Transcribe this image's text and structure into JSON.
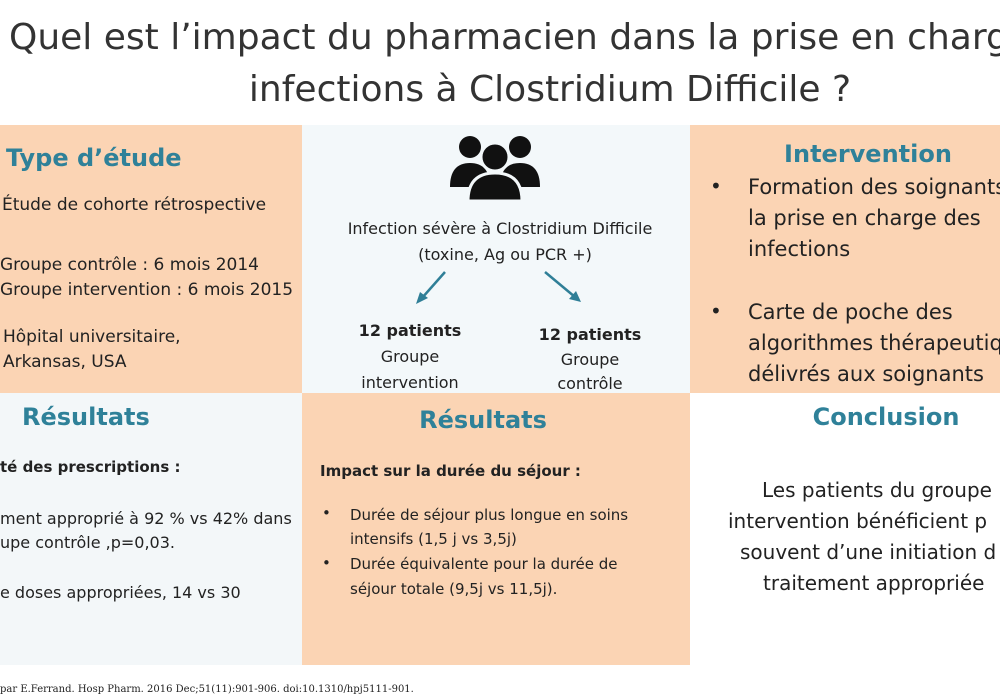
{
  "title": {
    "line1": "Quel est l’impact du pharmacien dans la prise en charge",
    "line2": "infections à Clostridium Difficile ?"
  },
  "study_type": {
    "heading": "Type d’étude",
    "items": [
      "Étude de cohorte rétrospective",
      "Groupe contrôle : 6 mois 2014",
      "Groupe intervention :  6 mois 2015",
      "Hôpital universitaire,",
      "Arkansas, USA"
    ]
  },
  "population": {
    "criteria": [
      "Infection sévère  à Clostridium Difficile",
      "(toxine, Ag ou PCR +)"
    ],
    "groups": [
      {
        "count": "12 patients",
        "label": [
          "Groupe",
          "intervention"
        ]
      },
      {
        "count": "12 patients",
        "label": [
          "Groupe",
          "contrôle"
        ]
      }
    ]
  },
  "intervention": {
    "heading": "Intervention",
    "bullets": [
      [
        "Formation des soignants",
        "la prise en charge des",
        "infections"
      ],
      [
        "Carte de poche des",
        "algorithmes thérapeutiq",
        "délivrés aux soignants"
      ]
    ]
  },
  "results_left": {
    "heading": "Résultats",
    "subheading": "té des prescriptions  :",
    "lines": [
      "ment approprié  à 92 % vs 42% dans",
      "upe contrôle ,p=0,03.",
      "e doses appropriées,  14 vs 30"
    ]
  },
  "results_mid": {
    "heading": "Résultats",
    "subheading": "Impact sur la durée du séjour :",
    "bullets": [
      [
        "Durée de séjour plus longue  en soins",
        "intensifs (1,5 j vs 3,5j)"
      ],
      [
        "Durée équivalente  pour la durée de",
        "séjour totale   (9,5j vs 11,5j)."
      ]
    ]
  },
  "conclusion": {
    "heading": "Conclusion",
    "lines": [
      "Les patients du groupe",
      "intervention bénéficient p",
      "souvent d’une initiation d",
      "traitement appropriée"
    ]
  },
  "footer": "par E.Ferrand. Hosp Pharm. 2016 Dec;51(11):901-906. doi:10.1310/hpj5111-901."
}
